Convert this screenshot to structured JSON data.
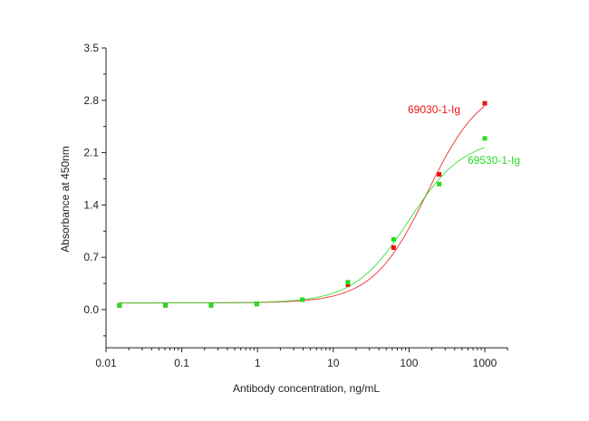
{
  "chart_data": {
    "type": "scatter",
    "title": "",
    "xlabel": "Antibody concentration, ng/mL",
    "ylabel": "Absorbance at 450nm",
    "xscale": "log",
    "xlim": [
      0.01,
      2000
    ],
    "ylim": [
      -0.51,
      3.5
    ],
    "xticks": [
      0.01,
      0.1,
      1,
      10,
      100,
      1000
    ],
    "xtick_labels": [
      "0.01",
      "0.1",
      "1",
      "10",
      "100",
      "1000"
    ],
    "yticks": [
      0.0,
      0.7,
      1.4,
      2.1,
      2.8,
      3.5
    ],
    "ytick_labels": [
      "0.0",
      "0.7",
      "1.4",
      "2.1",
      "2.8",
      "3.5"
    ],
    "grid": false,
    "x": [
      0.015,
      0.061,
      0.244,
      0.977,
      3.9,
      15.6,
      62.5,
      250,
      1000
    ],
    "series": [
      {
        "name": "69030-1-Ig",
        "color": "#ee1111",
        "values": [
          0.057,
          0.057,
          0.057,
          0.076,
          0.133,
          0.335,
          0.83,
          1.81,
          2.76
        ],
        "fit": "sigmoidal"
      },
      {
        "name": "69530-1-Ig",
        "color": "#22dd22",
        "values": [
          0.057,
          0.06,
          0.058,
          0.076,
          0.133,
          0.367,
          0.94,
          1.68,
          2.29
        ],
        "fit": "sigmoidal"
      }
    ],
    "legend": "inline labels near curve ends"
  }
}
